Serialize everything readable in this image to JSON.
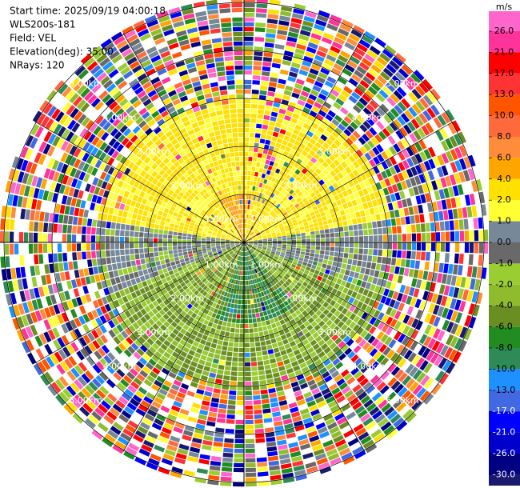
{
  "chart_data": {
    "type": "ppi",
    "header": [
      "Start time: 2025/09/19 04:00:18",
      "WLS200s-181",
      "Field: VEL",
      "Elevation(deg): 35.00",
      "NRays: 120"
    ],
    "range_labels": [
      "1.00km",
      "2.00km",
      "3.00km",
      "4.00km",
      "5.00km"
    ],
    "colorbar_title": "m/s",
    "colorbar_ticks": [
      {
        "value": 26,
        "label": "26.0"
      },
      {
        "value": 21,
        "label": "21.0"
      },
      {
        "value": 17,
        "label": "17.0"
      },
      {
        "value": 13,
        "label": "13.0"
      },
      {
        "value": 10,
        "label": "10.0"
      },
      {
        "value": 8,
        "label": "8.0"
      },
      {
        "value": 6,
        "label": "6.0"
      },
      {
        "value": 4,
        "label": "4.0"
      },
      {
        "value": 2,
        "label": "2.0"
      },
      {
        "value": 1,
        "label": "1.0"
      },
      {
        "value": 0,
        "label": "0.0"
      },
      {
        "value": -1,
        "label": "-1.0"
      },
      {
        "value": -2,
        "label": "-2.0"
      },
      {
        "value": -4,
        "label": "-4.0"
      },
      {
        "value": -6,
        "label": "-6.0"
      },
      {
        "value": -8,
        "label": "-8.0"
      },
      {
        "value": -10,
        "label": "-10.0"
      },
      {
        "value": -13,
        "label": "-13.0"
      },
      {
        "value": -17,
        "label": "-17.0"
      },
      {
        "value": -21,
        "label": "-21.0"
      },
      {
        "value": -26,
        "label": "-26.0"
      },
      {
        "value": -30,
        "label": "-30.0"
      }
    ],
    "colors": [
      "#ff66cc",
      "#ff3399",
      "#ff0000",
      "#ff3333",
      "#ff5500",
      "#ff6a3d",
      "#ff8c3a",
      "#ffa500",
      "#ffe000",
      "#ffff33",
      "#778899",
      "#696969",
      "#9acd32",
      "#8fbc2f",
      "#6b8e23",
      "#228b22",
      "#2e8b57",
      "#1e90ff",
      "#4169e1",
      "#0000ff",
      "#0000cd",
      "#000080",
      "#191970"
    ]
  }
}
